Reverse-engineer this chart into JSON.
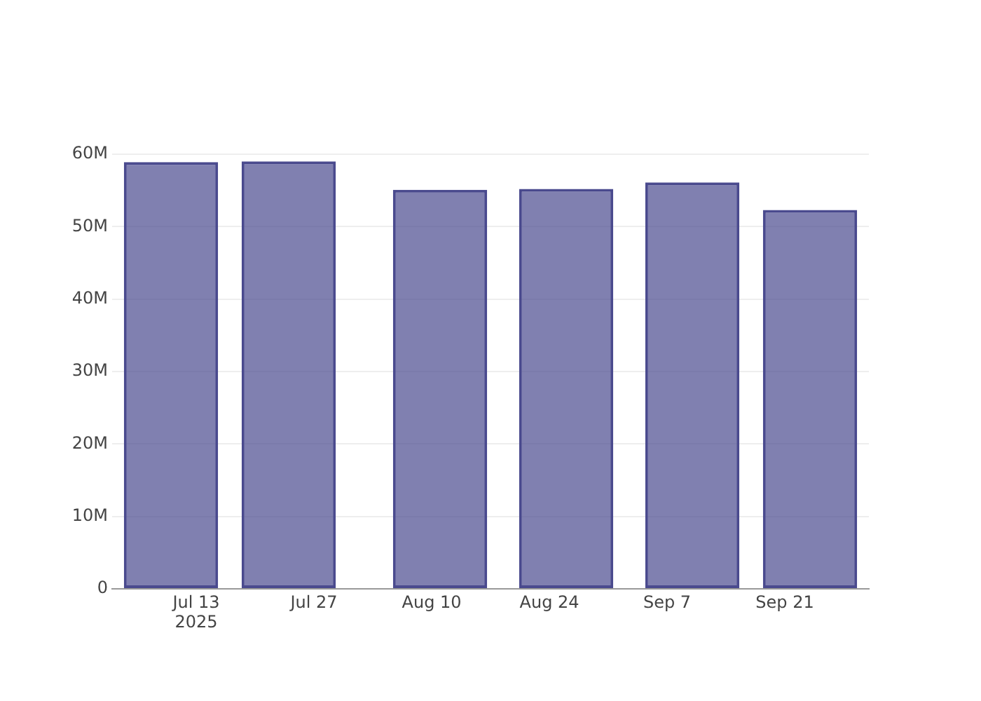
{
  "chart_data": {
    "type": "bar",
    "x": [
      "2025-07-10",
      "2025-07-24",
      "2025-08-11",
      "2025-08-26",
      "2025-09-10",
      "2025-09-24"
    ],
    "values": [
      58900000,
      59000000,
      55100000,
      55200000,
      56100000,
      52300000
    ],
    "color": "#4a4a8e",
    "xlim": [
      "2025-07-03",
      "2025-10-01"
    ],
    "xticks": [
      {
        "value": "2025-07-13",
        "label": "Jul 13\n2025"
      },
      {
        "value": "2025-07-27",
        "label": "Jul 27"
      },
      {
        "value": "2025-08-10",
        "label": "Aug 10"
      },
      {
        "value": "2025-08-24",
        "label": "Aug 24"
      },
      {
        "value": "2025-09-07",
        "label": "Sep 7"
      },
      {
        "value": "2025-09-21",
        "label": "Sep 21"
      }
    ],
    "ylim": [
      0,
      60000000
    ],
    "yticks": [
      0,
      {
        "value": 10000000,
        "label": "10M"
      },
      {
        "value": 20000000,
        "label": "20M"
      },
      {
        "value": 30000000,
        "label": "30M"
      },
      {
        "value": 40000000,
        "label": "40M"
      },
      {
        "value": 50000000,
        "label": "50M"
      },
      {
        "value": 60000000,
        "label": "60M"
      }
    ],
    "grid": "y"
  }
}
